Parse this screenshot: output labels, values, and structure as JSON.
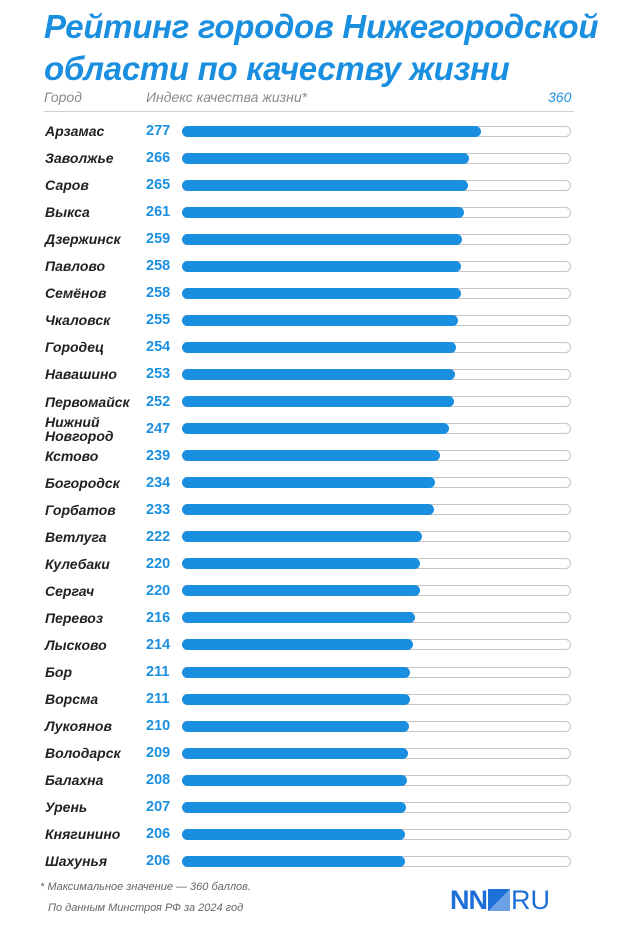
{
  "title": "Рейтинг городов Нижегородской области по качеству жизни",
  "header": {
    "city": "Город",
    "index": "Индекс качества жизни*",
    "max": "360"
  },
  "footnote": "* Максимальное значение — 360 баллов.",
  "source": "По данным Минстроя РФ за 2024 год",
  "logo": {
    "left": "NN",
    "right": "RU"
  },
  "colors": {
    "accent": "#1a8fe0",
    "track": "#c6c6c6",
    "logo": "#1d6fd8"
  },
  "chart_data": {
    "type": "bar",
    "orientation": "horizontal",
    "xlim": [
      0,
      360
    ],
    "categories": [
      "Арзамас",
      "Заволжье",
      "Саров",
      "Выкса",
      "Дзержинск",
      "Павлово",
      "Семёнов",
      "Чкаловск",
      "Городец",
      "Навашино",
      "Первомайск",
      "Нижний\nНовгород",
      "Кстово",
      "Богородск",
      "Горбатов",
      "Ветлуга",
      "Кулебаки",
      "Сергач",
      "Перевоз",
      "Лысково",
      "Бор",
      "Ворсма",
      "Лукоянов",
      "Володарск",
      "Балахна",
      "Урень",
      "Княгинино",
      "Шахунья"
    ],
    "values": [
      277,
      266,
      265,
      261,
      259,
      258,
      258,
      255,
      254,
      253,
      252,
      247,
      239,
      234,
      233,
      222,
      220,
      220,
      216,
      214,
      211,
      211,
      210,
      209,
      208,
      207,
      206,
      206
    ]
  }
}
